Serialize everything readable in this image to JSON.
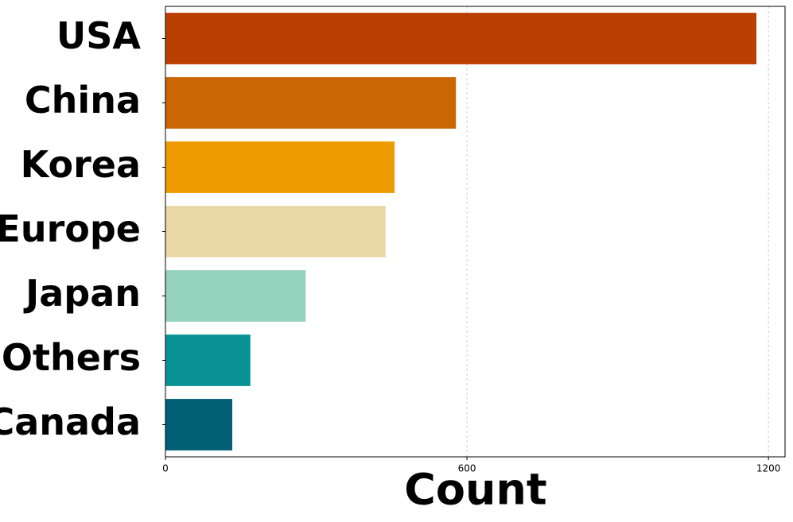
{
  "chart_data": {
    "type": "barh",
    "categories": [
      "USA",
      "China",
      "Korea",
      "Europe",
      "Japan",
      "Others",
      "Canada"
    ],
    "values": [
      1176,
      578,
      456,
      438,
      279,
      169,
      133
    ],
    "colors": [
      "#bb3e03",
      "#ca6702",
      "#ee9b00",
      "#e9d8a6",
      "#94d2bd",
      "#0a9396",
      "#005f73"
    ],
    "xlabel": "Count",
    "xlim": [
      0,
      1233
    ],
    "xticks": [
      0,
      600,
      1200
    ],
    "grid": true
  }
}
